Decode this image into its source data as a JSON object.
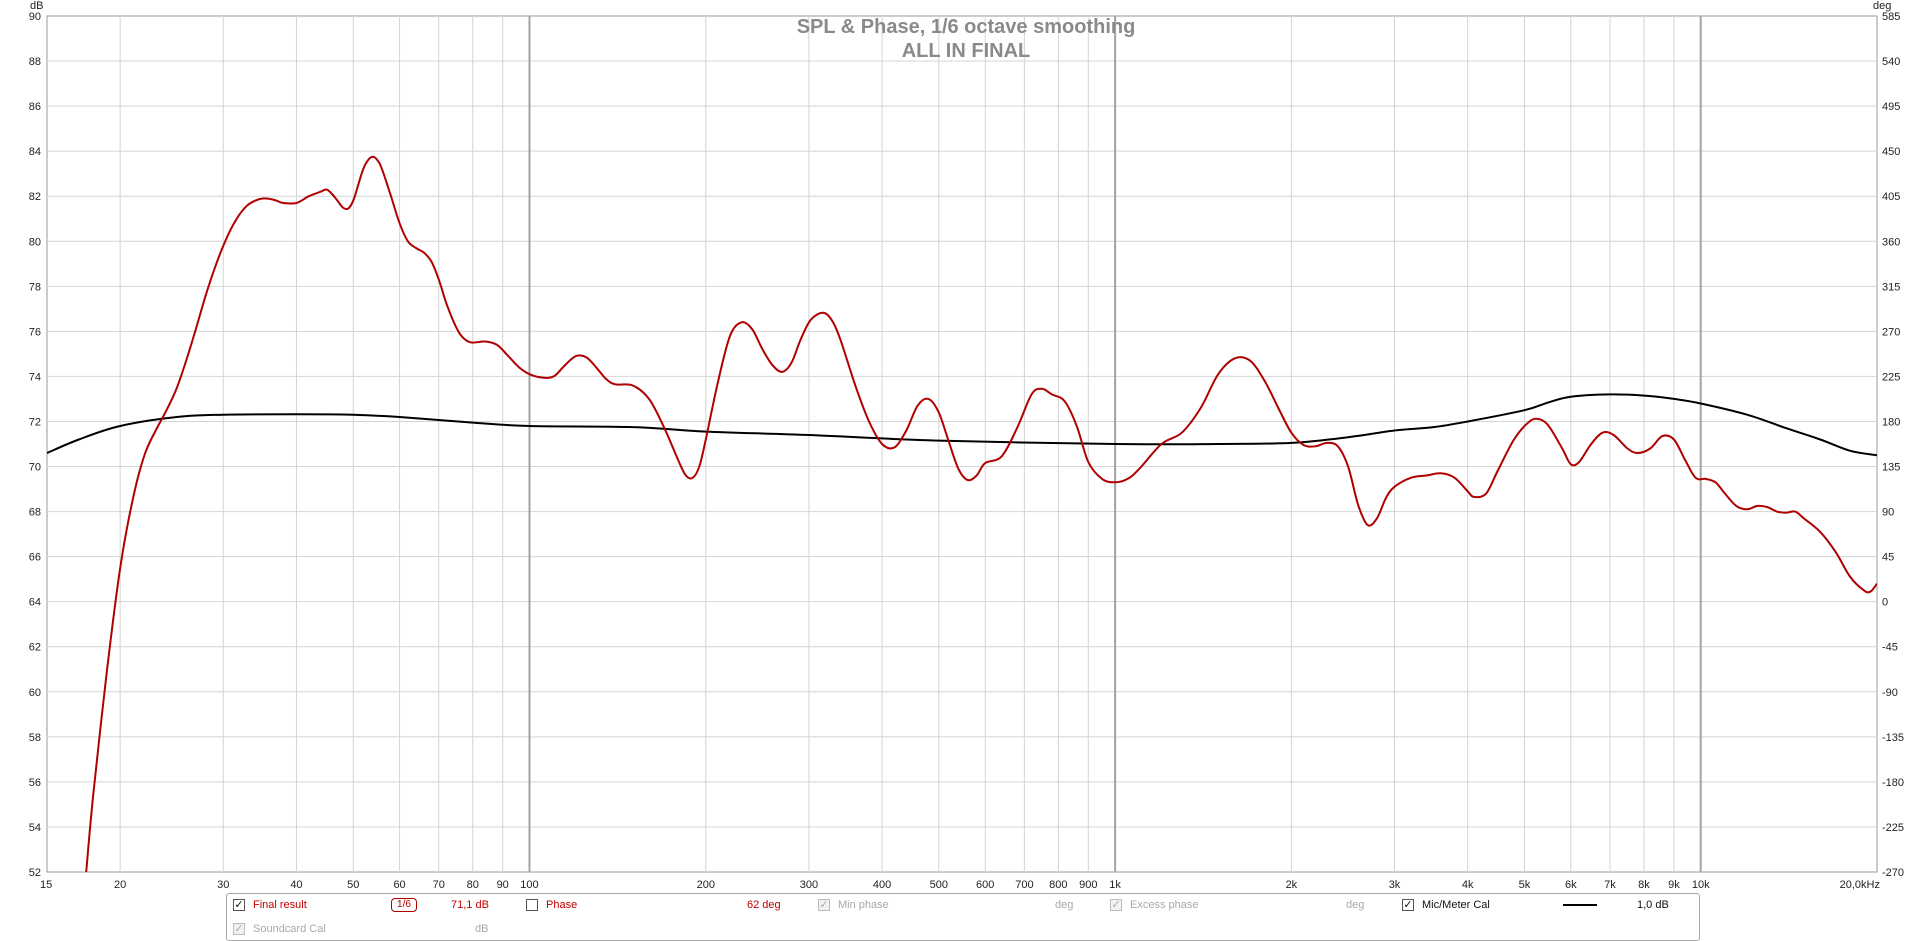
{
  "chart_data": {
    "type": "line",
    "title": "SPL & Phase, 1/6 octave smoothing",
    "subtitle": "ALL IN FINAL",
    "xscale": "log",
    "xlim": [
      15,
      20000
    ],
    "ylim": [
      52,
      90
    ],
    "y2lim": [
      -270,
      585
    ],
    "y_unit": "dB",
    "y2_unit": "deg",
    "x_unit_suffix": "kHz",
    "grid": true,
    "x_ticks": [
      {
        "v": 15,
        "label": "15"
      },
      {
        "v": 20,
        "label": "20"
      },
      {
        "v": 30,
        "label": "30"
      },
      {
        "v": 40,
        "label": "40"
      },
      {
        "v": 50,
        "label": "50"
      },
      {
        "v": 60,
        "label": "60"
      },
      {
        "v": 70,
        "label": "70"
      },
      {
        "v": 80,
        "label": "80"
      },
      {
        "v": 90,
        "label": "90"
      },
      {
        "v": 100,
        "label": "100"
      },
      {
        "v": 200,
        "label": "200"
      },
      {
        "v": 300,
        "label": "300"
      },
      {
        "v": 400,
        "label": "400"
      },
      {
        "v": 500,
        "label": "500"
      },
      {
        "v": 600,
        "label": "600"
      },
      {
        "v": 700,
        "label": "700"
      },
      {
        "v": 800,
        "label": "800"
      },
      {
        "v": 900,
        "label": "900"
      },
      {
        "v": 1000,
        "label": "1k"
      },
      {
        "v": 2000,
        "label": "2k"
      },
      {
        "v": 3000,
        "label": "3k"
      },
      {
        "v": 4000,
        "label": "4k"
      },
      {
        "v": 5000,
        "label": "5k"
      },
      {
        "v": 6000,
        "label": "6k"
      },
      {
        "v": 7000,
        "label": "7k"
      },
      {
        "v": 8000,
        "label": "8k"
      },
      {
        "v": 9000,
        "label": "9k"
      },
      {
        "v": 10000,
        "label": "10k"
      },
      {
        "v": 20000,
        "label": "20,0kHz"
      }
    ],
    "major_x": [
      100,
      1000,
      10000
    ],
    "y_ticks": [
      "90",
      "88",
      "86",
      "84",
      "82",
      "80",
      "78",
      "76",
      "74",
      "72",
      "70",
      "68",
      "66",
      "64",
      "62",
      "60",
      "58",
      "56",
      "54",
      "52"
    ],
    "y2_ticks": [
      "585",
      "540",
      "495",
      "450",
      "405",
      "360",
      "315",
      "270",
      "225",
      "180",
      "135",
      "90",
      "45",
      "0",
      "-45",
      "-90",
      "-135",
      "-180",
      "-225",
      "-270"
    ],
    "series": [
      {
        "name": "Final result",
        "color": "#b00000",
        "points": [
          [
            17.5,
            52
          ],
          [
            18,
            55.5
          ],
          [
            19,
            61
          ],
          [
            20,
            65.5
          ],
          [
            21,
            68.5
          ],
          [
            22,
            70.5
          ],
          [
            23,
            71.6
          ],
          [
            24,
            72.5
          ],
          [
            25,
            73.5
          ],
          [
            26,
            74.8
          ],
          [
            27,
            76.2
          ],
          [
            28,
            77.6
          ],
          [
            29,
            78.8
          ],
          [
            30,
            79.8
          ],
          [
            31,
            80.6
          ],
          [
            32,
            81.2
          ],
          [
            33,
            81.6
          ],
          [
            34,
            81.8
          ],
          [
            35,
            81.9
          ],
          [
            36,
            81.88
          ],
          [
            37,
            81.8
          ],
          [
            38,
            81.7
          ],
          [
            40,
            81.7
          ],
          [
            42,
            82
          ],
          [
            44,
            82.2
          ],
          [
            45,
            82.3
          ],
          [
            46,
            82.1
          ],
          [
            47,
            81.8
          ],
          [
            48,
            81.5
          ],
          [
            49,
            81.45
          ],
          [
            50,
            81.8
          ],
          [
            51,
            82.5
          ],
          [
            52,
            83.2
          ],
          [
            53,
            83.6
          ],
          [
            54,
            83.75
          ],
          [
            55,
            83.6
          ],
          [
            56,
            83.2
          ],
          [
            58,
            82
          ],
          [
            60,
            80.8
          ],
          [
            62,
            80
          ],
          [
            64,
            79.7
          ],
          [
            66,
            79.5
          ],
          [
            68,
            79.1
          ],
          [
            70,
            78.3
          ],
          [
            72,
            77.3
          ],
          [
            74,
            76.5
          ],
          [
            76,
            75.9
          ],
          [
            78,
            75.6
          ],
          [
            80,
            75.5
          ],
          [
            84,
            75.55
          ],
          [
            88,
            75.4
          ],
          [
            92,
            74.9
          ],
          [
            96,
            74.4
          ],
          [
            100,
            74.1
          ],
          [
            105,
            73.95
          ],
          [
            110,
            74
          ],
          [
            115,
            74.5
          ],
          [
            120,
            74.9
          ],
          [
            125,
            74.85
          ],
          [
            130,
            74.4
          ],
          [
            135,
            73.9
          ],
          [
            140,
            73.65
          ],
          [
            150,
            73.6
          ],
          [
            160,
            73
          ],
          [
            170,
            71.7
          ],
          [
            180,
            70.2
          ],
          [
            185,
            69.6
          ],
          [
            190,
            69.5
          ],
          [
            195,
            70
          ],
          [
            200,
            71.2
          ],
          [
            210,
            73.8
          ],
          [
            220,
            75.8
          ],
          [
            230,
            76.4
          ],
          [
            240,
            76.1
          ],
          [
            250,
            75.2
          ],
          [
            260,
            74.5
          ],
          [
            270,
            74.2
          ],
          [
            280,
            74.6
          ],
          [
            290,
            75.6
          ],
          [
            300,
            76.4
          ],
          [
            310,
            76.75
          ],
          [
            320,
            76.8
          ],
          [
            330,
            76.4
          ],
          [
            340,
            75.6
          ],
          [
            360,
            73.6
          ],
          [
            380,
            72
          ],
          [
            400,
            71
          ],
          [
            420,
            70.85
          ],
          [
            440,
            71.6
          ],
          [
            460,
            72.7
          ],
          [
            480,
            73
          ],
          [
            500,
            72.4
          ],
          [
            520,
            71.1
          ],
          [
            540,
            69.9
          ],
          [
            560,
            69.4
          ],
          [
            580,
            69.6
          ],
          [
            600,
            70.15
          ],
          [
            640,
            70.45
          ],
          [
            680,
            71.7
          ],
          [
            720,
            73.2
          ],
          [
            750,
            73.45
          ],
          [
            780,
            73.2
          ],
          [
            820,
            72.9
          ],
          [
            860,
            71.8
          ],
          [
            900,
            70.2
          ],
          [
            950,
            69.45
          ],
          [
            1000,
            69.3
          ],
          [
            1050,
            69.45
          ],
          [
            1100,
            69.9
          ],
          [
            1200,
            71
          ],
          [
            1300,
            71.5
          ],
          [
            1400,
            72.6
          ],
          [
            1500,
            74.1
          ],
          [
            1600,
            74.8
          ],
          [
            1700,
            74.7
          ],
          [
            1800,
            73.8
          ],
          [
            1900,
            72.6
          ],
          [
            2000,
            71.5
          ],
          [
            2100,
            70.95
          ],
          [
            2200,
            70.9
          ],
          [
            2300,
            71.05
          ],
          [
            2400,
            70.9
          ],
          [
            2500,
            70
          ],
          [
            2600,
            68.3
          ],
          [
            2700,
            67.4
          ],
          [
            2800,
            67.7
          ],
          [
            2900,
            68.6
          ],
          [
            3000,
            69.1
          ],
          [
            3200,
            69.5
          ],
          [
            3400,
            69.6
          ],
          [
            3600,
            69.7
          ],
          [
            3800,
            69.5
          ],
          [
            4000,
            68.9
          ],
          [
            4100,
            68.65
          ],
          [
            4300,
            68.8
          ],
          [
            4500,
            69.8
          ],
          [
            4800,
            71.2
          ],
          [
            5100,
            72
          ],
          [
            5300,
            72.1
          ],
          [
            5500,
            71.8
          ],
          [
            5800,
            70.8
          ],
          [
            6000,
            70.1
          ],
          [
            6200,
            70.2
          ],
          [
            6500,
            71
          ],
          [
            6800,
            71.5
          ],
          [
            7100,
            71.4
          ],
          [
            7500,
            70.8
          ],
          [
            7800,
            70.6
          ],
          [
            8200,
            70.8
          ],
          [
            8600,
            71.35
          ],
          [
            9000,
            71.2
          ],
          [
            9400,
            70.3
          ],
          [
            9800,
            69.5
          ],
          [
            10200,
            69.45
          ],
          [
            10600,
            69.3
          ],
          [
            11000,
            68.8
          ],
          [
            11500,
            68.25
          ],
          [
            12000,
            68.1
          ],
          [
            12500,
            68.25
          ],
          [
            13000,
            68.2
          ],
          [
            13500,
            68.0
          ],
          [
            14000,
            67.95
          ],
          [
            14500,
            68
          ],
          [
            15000,
            67.7
          ],
          [
            16000,
            67.1
          ],
          [
            17000,
            66.2
          ],
          [
            18000,
            65.1
          ],
          [
            19000,
            64.5
          ],
          [
            19500,
            64.45
          ],
          [
            20000,
            64.8
          ]
        ]
      },
      {
        "name": "Mic/Meter Cal",
        "color": "#000000",
        "points": [
          [
            15,
            70.6
          ],
          [
            17,
            71.2
          ],
          [
            20,
            71.8
          ],
          [
            25,
            72.2
          ],
          [
            30,
            72.3
          ],
          [
            40,
            72.32
          ],
          [
            50,
            72.3
          ],
          [
            60,
            72.2
          ],
          [
            80,
            71.95
          ],
          [
            100,
            71.8
          ],
          [
            150,
            71.75
          ],
          [
            200,
            71.55
          ],
          [
            300,
            71.4
          ],
          [
            500,
            71.15
          ],
          [
            1000,
            71.0
          ],
          [
            1500,
            71.0
          ],
          [
            2000,
            71.05
          ],
          [
            2500,
            71.3
          ],
          [
            3000,
            71.6
          ],
          [
            3500,
            71.75
          ],
          [
            4000,
            72.0
          ],
          [
            5000,
            72.5
          ],
          [
            5500,
            72.85
          ],
          [
            6000,
            73.1
          ],
          [
            7000,
            73.2
          ],
          [
            8000,
            73.15
          ],
          [
            9000,
            73.0
          ],
          [
            10000,
            72.8
          ],
          [
            12000,
            72.3
          ],
          [
            14000,
            71.7
          ],
          [
            16000,
            71.2
          ],
          [
            18000,
            70.7
          ],
          [
            20000,
            70.5
          ]
        ]
      }
    ]
  },
  "legend": {
    "final_result": {
      "label": "Final result",
      "smoothing": "1/6",
      "value": "71,1 dB",
      "checked": true
    },
    "phase": {
      "label": "Phase",
      "value": "62 deg",
      "checked": false
    },
    "min_phase": {
      "label": "Min phase",
      "value": "deg",
      "checked": true
    },
    "excess_phase": {
      "label": "Excess phase",
      "value": "deg",
      "checked": true
    },
    "mic_meter_cal": {
      "label": "Mic/Meter Cal",
      "value": "1,0 dB",
      "checked": true
    },
    "soundcard_cal": {
      "label": "Soundcard Cal",
      "value": "dB",
      "checked": true
    }
  }
}
